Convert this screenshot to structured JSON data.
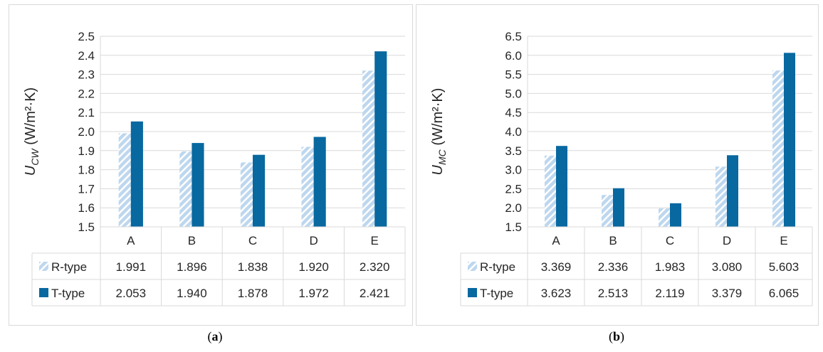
{
  "colors": {
    "r_type": "#bdd7ee",
    "r_type_hatch": "#ffffff",
    "t_type": "#0868a0",
    "grid": "#d9d9d9",
    "text": "#262626"
  },
  "chart_data": [
    {
      "id": "a",
      "type": "bar",
      "caption_letter": "a",
      "ylabel_main": "U",
      "ylabel_sub": "CW",
      "ylabel_unit": " (W/m²·K)",
      "ylim": [
        1.5,
        2.5
      ],
      "ytick_step": 0.1,
      "ytick_labels": [
        "1.5",
        "1.6",
        "1.7",
        "1.8",
        "1.9",
        "2.0",
        "2.1",
        "2.2",
        "2.3",
        "2.4",
        "2.5"
      ],
      "grid": "horizontal",
      "legend": "data-table",
      "categories": [
        "A",
        "B",
        "C",
        "D",
        "E"
      ],
      "series": [
        {
          "name": "R-type",
          "values": [
            1.991,
            1.896,
            1.838,
            1.92,
            2.32
          ],
          "labels": [
            "1.991",
            "1.896",
            "1.838",
            "1.920",
            "2.320"
          ]
        },
        {
          "name": "T-type",
          "values": [
            2.053,
            1.94,
            1.878,
            1.972,
            2.421
          ],
          "labels": [
            "2.053",
            "1.940",
            "1.878",
            "1.972",
            "2.421"
          ]
        }
      ]
    },
    {
      "id": "b",
      "type": "bar",
      "caption_letter": "b",
      "ylabel_main": "U",
      "ylabel_sub": "MC",
      "ylabel_unit": " (W/m²·K)",
      "ylim": [
        1.5,
        6.5
      ],
      "ytick_step": 0.5,
      "ytick_labels": [
        "1.5",
        "2.0",
        "2.5",
        "3.0",
        "3.5",
        "4.0",
        "4.5",
        "5.0",
        "5.5",
        "6.0",
        "6.5"
      ],
      "grid": "horizontal",
      "legend": "data-table",
      "categories": [
        "A",
        "B",
        "C",
        "D",
        "E"
      ],
      "series": [
        {
          "name": "R-type",
          "values": [
            3.369,
            2.336,
            1.983,
            3.08,
            5.603
          ],
          "labels": [
            "3.369",
            "2.336",
            "1.983",
            "3.080",
            "5.603"
          ]
        },
        {
          "name": "T-type",
          "values": [
            3.623,
            2.513,
            2.119,
            3.379,
            6.065
          ],
          "labels": [
            "3.623",
            "2.513",
            "2.119",
            "3.379",
            "6.065"
          ]
        }
      ]
    }
  ]
}
